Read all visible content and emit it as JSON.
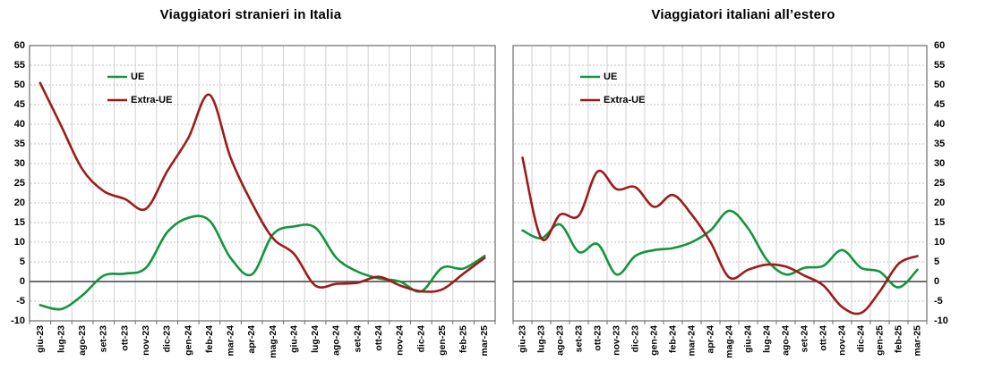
{
  "colors": {
    "background": "#ffffff",
    "grid_vertical": "#d2d2d2",
    "grid_dashed": "#c3c3c3",
    "zero_line": "#3f3f3f",
    "frame": "#6b6b6b",
    "text": "#000000",
    "ue_green": "#12953d",
    "extra_ue_red": "#9e1b1b"
  },
  "chart_data": [
    {
      "type": "line",
      "title": "Viaggiatori stranieri in Italia",
      "categories": [
        "giu-23",
        "lug-23",
        "ago-23",
        "set-23",
        "ott-23",
        "nov-23",
        "dic-23",
        "gen-24",
        "feb-24",
        "mar-24",
        "apr-24",
        "mag-24",
        "giu-24",
        "lug-24",
        "ago-24",
        "set-24",
        "ott-24",
        "nov-24",
        "dic-24",
        "gen-25",
        "feb-25",
        "mar-25"
      ],
      "series": [
        {
          "name": "UE",
          "color": "#12953d",
          "values": [
            -6,
            -7,
            -3.5,
            1.5,
            2,
            3.5,
            12.5,
            16.2,
            15.5,
            6,
            1.8,
            12,
            14,
            13.7,
            6,
            2.5,
            0.8,
            0,
            -2.5,
            3.5,
            3.3,
            6.5
          ]
        },
        {
          "name": "Extra-UE",
          "color": "#9e1b1b",
          "values": [
            50.5,
            39.5,
            28.5,
            23,
            21,
            18.5,
            28,
            36.5,
            47.5,
            31.5,
            20,
            11,
            7,
            -1,
            -0.6,
            -0.3,
            1.2,
            -1,
            -2.5,
            -2,
            2,
            6
          ]
        }
      ],
      "ylim": [
        -10,
        60
      ],
      "ytick_step": 5,
      "y_axis_side": "left",
      "x_tick_rotation": -90,
      "legend_position": "inside-top-left",
      "grid": {
        "vertical_lines": true,
        "horizontal_dashed": true,
        "zero_line_solid": true
      }
    },
    {
      "type": "line",
      "title": "Viaggiatori italiani all’estero",
      "categories": [
        "giu-23",
        "lug-23",
        "ago-23",
        "set-23",
        "ott-23",
        "nov-23",
        "dic-23",
        "gen-24",
        "feb-24",
        "mar-24",
        "apr-24",
        "mag-24",
        "giu-24",
        "lug-24",
        "ago-24",
        "set-24",
        "ott-24",
        "nov-24",
        "dic-24",
        "gen-25",
        "feb-25",
        "mar-25"
      ],
      "series": [
        {
          "name": "UE",
          "color": "#12953d",
          "values": [
            13,
            11,
            14.5,
            7.5,
            9.5,
            1.8,
            6.5,
            8,
            8.5,
            10,
            13,
            18,
            13.5,
            5.5,
            1.8,
            3.5,
            4,
            8,
            3.5,
            2.5,
            -1.5,
            3
          ]
        },
        {
          "name": "Extra-UE",
          "color": "#9e1b1b",
          "values": [
            31.5,
            11,
            17,
            16.8,
            28,
            23.5,
            24,
            19,
            22,
            17,
            10,
            1,
            3,
            4.3,
            3.8,
            1.5,
            -1,
            -6.5,
            -8,
            -2.5,
            4.5,
            6.5
          ]
        }
      ],
      "ylim": [
        -10,
        60
      ],
      "ytick_step": 5,
      "y_axis_side": "right",
      "x_tick_rotation": -90,
      "legend_position": "inside-top-left",
      "grid": {
        "vertical_lines": true,
        "horizontal_dashed": true,
        "zero_line_solid": true
      }
    }
  ]
}
